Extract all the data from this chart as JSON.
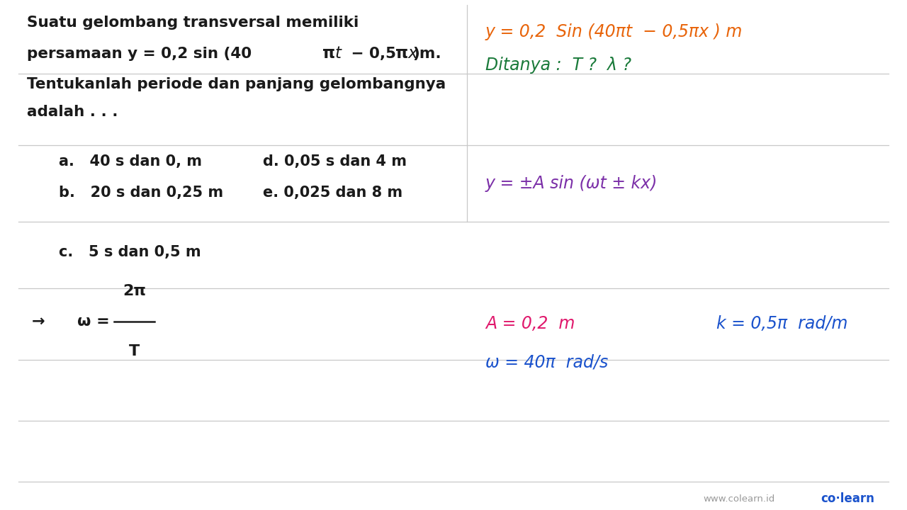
{
  "bg_color": "#ffffff",
  "line_color": "#c8c8c8",
  "text_color_black": "#1a1a1a",
  "text_color_orange": "#e8640a",
  "text_color_green": "#1a7a3a",
  "text_color_purple": "#7b2fa8",
  "text_color_pink": "#e0186c",
  "text_color_blue": "#1a52cc",
  "text_color_gray": "#999999",
  "figwidth": 12.8,
  "figheight": 7.2,
  "dpi": 100,
  "vline_x": 0.515,
  "hlines": [
    0.855,
    0.715,
    0.565,
    0.435,
    0.295,
    0.175,
    0.055
  ],
  "q1": "Suatu gelombang transversal memiliki",
  "q3": "Tentukanlah periode dan panjang gelombangnya",
  "q4": "adalah . . .",
  "ca": "a.   40 s dan 0, m",
  "cb": "b.   20 s dan 0,25 m",
  "cc": "c.   5 s dan 0,5 m",
  "cd": "d. 0,05 s dan 4 m",
  "ce": "e. 0,025 dan 8 m",
  "rhs_eq": "y = 0,2  Sin (40πt  − 0,5πx ) m",
  "rhs_ditanya": "Ditanya :  T ?  λ ?",
  "rhs_formula": "y = ±A sin (ωt ± kx)",
  "rhs_A": "A = 0,2  m",
  "rhs_k": "k = 0,5π  rad/m",
  "rhs_omega": "ω = 40π  rad/s",
  "watermark": "www.colearn.id",
  "brand": "co·learn"
}
